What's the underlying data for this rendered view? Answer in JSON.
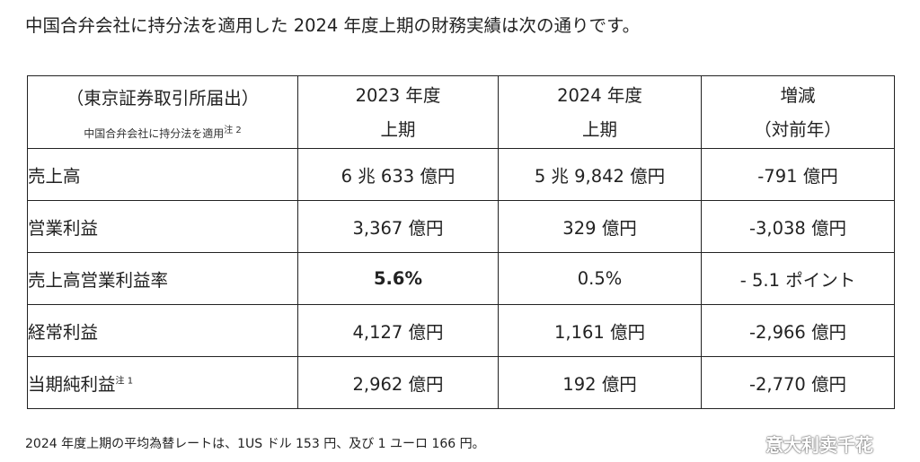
{
  "heading": "中国合弁会社に持分法を適用した 2024 年度上期の財務実績は次の通りです。",
  "table": {
    "header": {
      "col1_line1": "（東京証券取引所届出）",
      "col1_note": "中国合弁会社に持分法を適用",
      "col1_note_mark": "注 2",
      "col2_line1": "2023 年度",
      "col2_line2": "上期",
      "col3_line1": "2024 年度",
      "col3_line2": "上期",
      "col4_line1": "増減",
      "col4_line2": "（対前年）"
    },
    "rows": [
      {
        "label": "売上高",
        "mark": "",
        "y2023": "6 兆 633 億円",
        "y2024": "5 兆 9,842 億円",
        "change": "-791 億円"
      },
      {
        "label": "営業利益",
        "mark": "",
        "y2023": "3,367 億円",
        "y2024": "329 億円",
        "change": "-3,038 億円"
      },
      {
        "label": "売上高営業利益率",
        "mark": "",
        "y2023": "5.6%",
        "y2024": "0.5%",
        "change": "- 5.1 ポイント"
      },
      {
        "label": "経常利益",
        "mark": "",
        "y2023": "4,127 億円",
        "y2024": "1,161 億円",
        "change": "-2,966 億円"
      },
      {
        "label": "当期純利益",
        "mark": "注 1",
        "y2023": "2,962 億円",
        "y2024": "192 億円",
        "change": "-2,770 億円"
      }
    ]
  },
  "footnote": "2024 年度上期の平均為替レートは、1US ドル 153 円、及び 1 ユーロ 166 円。",
  "watermark": {
    "icon": "weibo-logo-icon",
    "text": "意大利卖千花"
  }
}
